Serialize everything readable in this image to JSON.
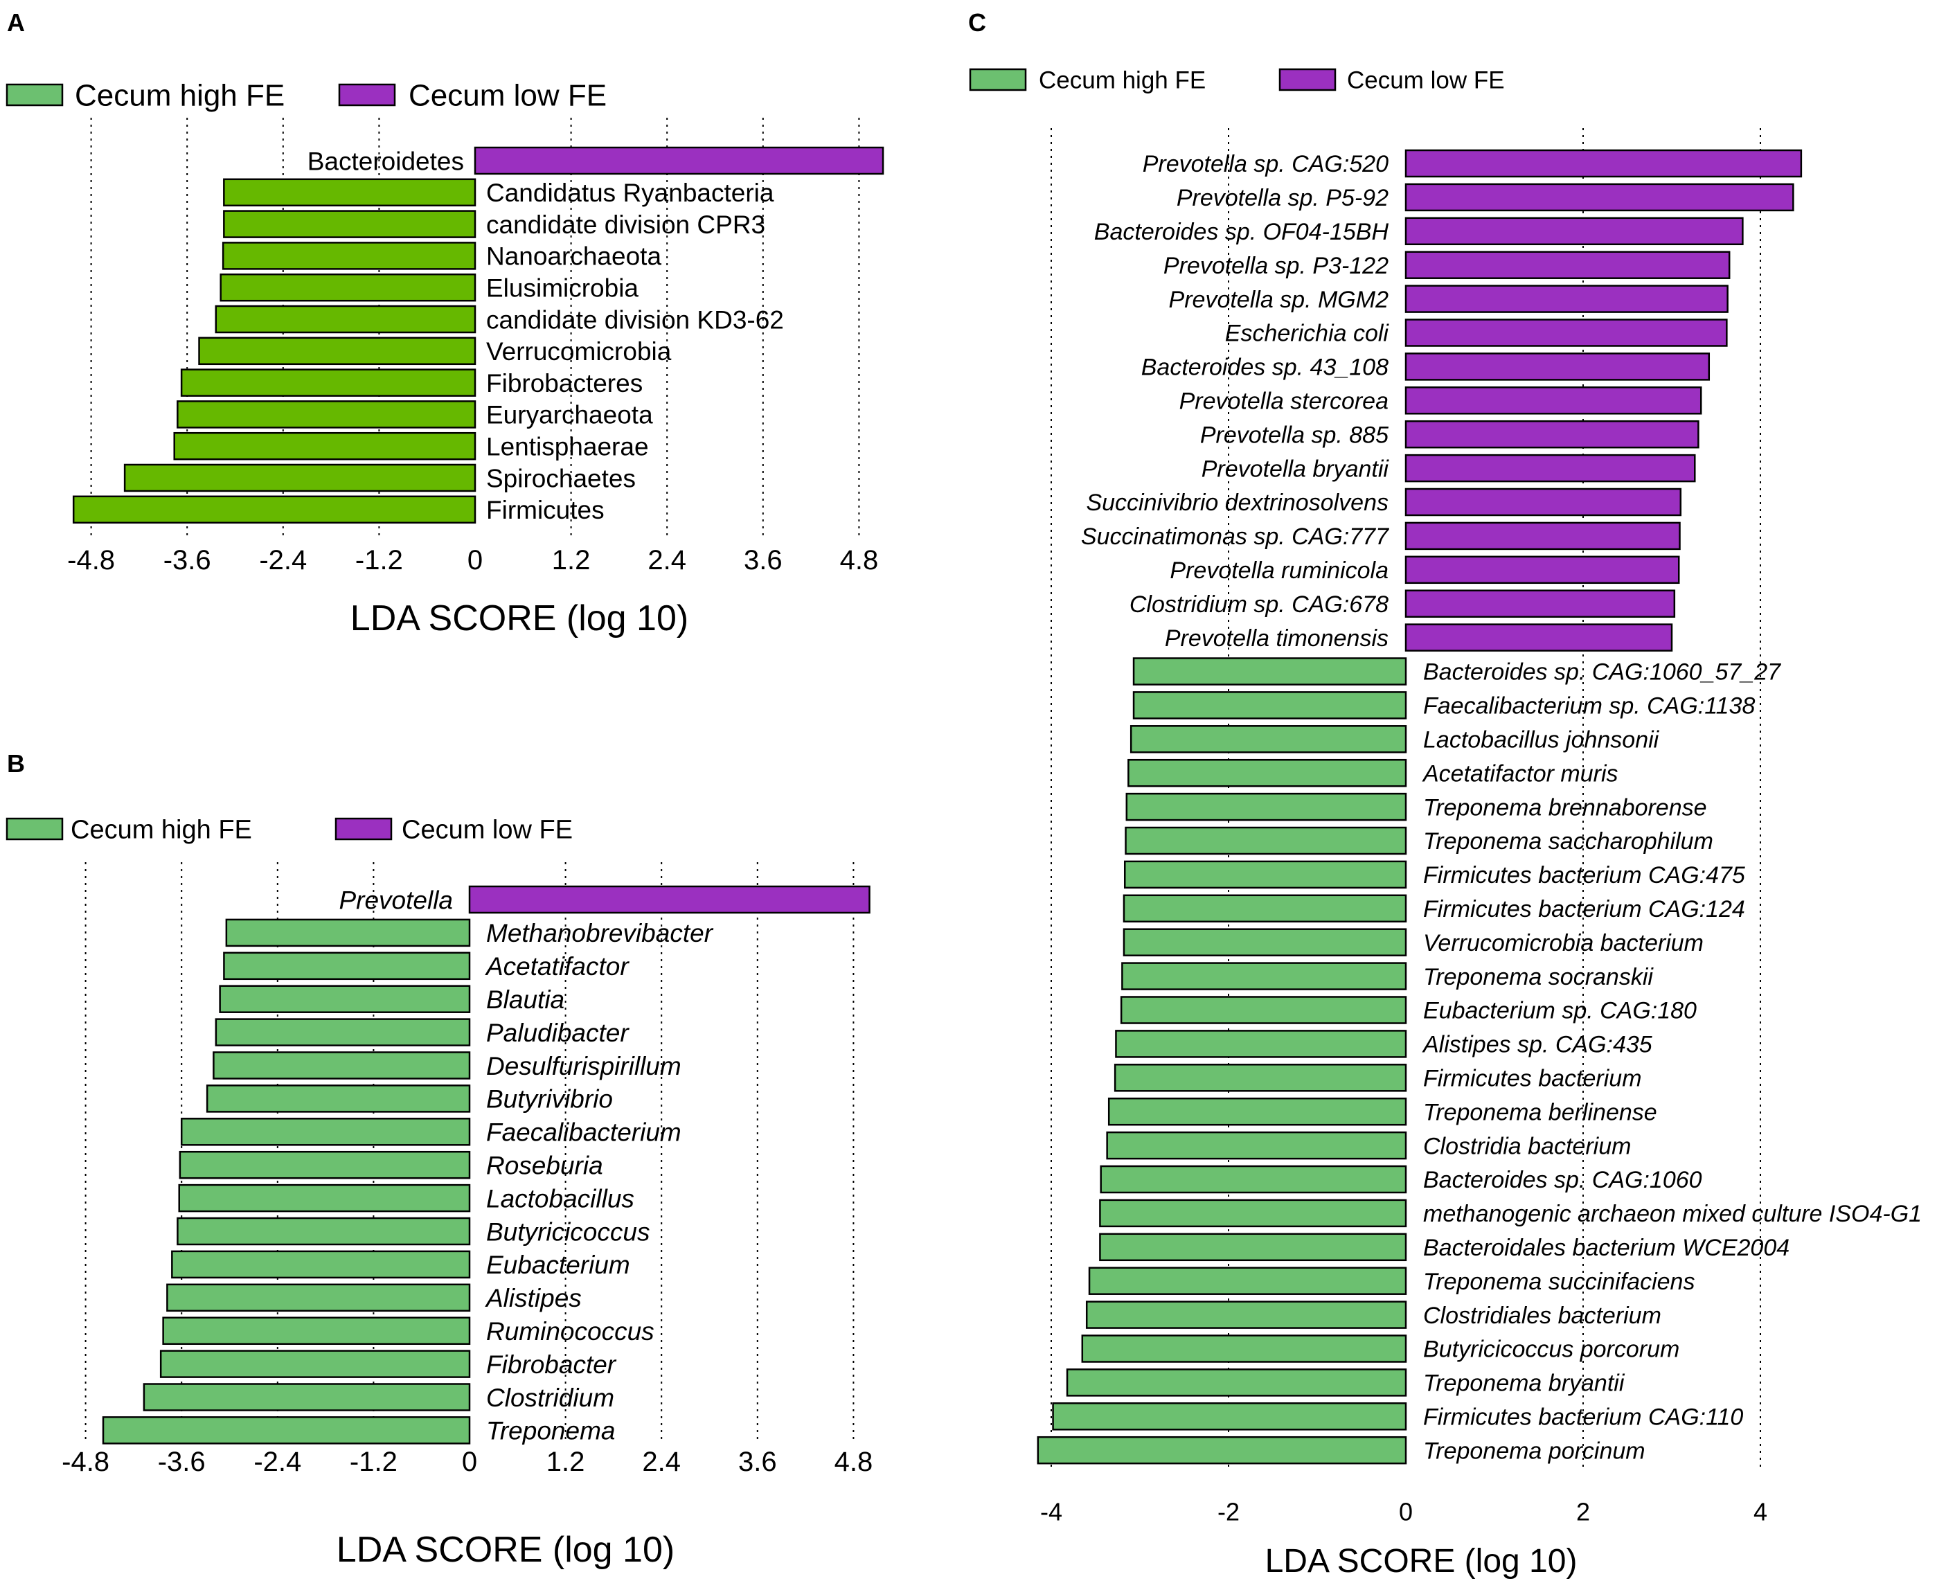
{
  "colors": {
    "high": "#6cc070",
    "high_dark": "#66b800",
    "low": "#9b30c0",
    "axis": "#000000"
  },
  "chart_data": [
    {
      "panel": "A",
      "type": "bar",
      "orientation": "horizontal",
      "legend": [
        {
          "label": "Cecum high FE",
          "color": "#6cc070"
        },
        {
          "label": "Cecum low FE",
          "color": "#9b30c0"
        }
      ],
      "xlabel": "LDA SCORE (log 10)",
      "xlim": [
        -4.8,
        4.8
      ],
      "xticks": [
        -4.8,
        -3.6,
        -2.4,
        -1.2,
        0,
        1.2,
        2.4,
        3.6,
        4.8
      ],
      "xtick_labels": [
        "-4.8",
        "-3.6",
        "-2.4",
        "-1.2",
        "0",
        "1.2",
        "2.4",
        "3.6",
        "4.8"
      ],
      "italic": false,
      "bar_color_high": "#66b800",
      "categories": [
        "Bacteroidetes",
        "Candidatus Ryanbacteria",
        "candidate division CPR3",
        "Nanoarchaeota",
        "Elusimicrobia",
        "candidate division KD3-62",
        "Verrucomicrobia",
        "Fibrobacteres",
        "Euryarchaeota",
        "Lentisphaerae",
        "Spirochaetes",
        "Firmicutes"
      ],
      "values": [
        5.1,
        -3.14,
        -3.14,
        -3.15,
        -3.18,
        -3.24,
        -3.45,
        -3.67,
        -3.72,
        -3.76,
        -4.38,
        -5.02
      ]
    },
    {
      "panel": "B",
      "type": "bar",
      "orientation": "horizontal",
      "legend": [
        {
          "label": "Cecum high FE",
          "color": "#6cc070"
        },
        {
          "label": "Cecum low FE",
          "color": "#9b30c0"
        }
      ],
      "xlabel": "LDA SCORE (log 10)",
      "xlim": [
        -4.8,
        4.8
      ],
      "xticks": [
        -4.8,
        -3.6,
        -2.4,
        -1.2,
        0,
        1.2,
        2.4,
        3.6,
        4.8
      ],
      "xtick_labels": [
        "-4.8",
        "-3.6",
        "-2.4",
        "-1.2",
        "0",
        "1.2",
        "2.4",
        "3.6",
        "4.8"
      ],
      "italic": true,
      "bar_color_high": "#6cc070",
      "categories": [
        "Prevotella",
        "Methanobrevibacter",
        "Acetatifactor",
        "Blautia",
        "Paludibacter",
        "Desulfurispirillum",
        "Butyrivibrio",
        "Faecalibacterium",
        "Roseburia",
        "Lactobacillus",
        "Butyricicoccus",
        "Eubacterium",
        "Alistipes",
        "Ruminococcus",
        "Fibrobacter",
        "Clostridium",
        "Treponema"
      ],
      "values": [
        5.0,
        -3.04,
        -3.07,
        -3.12,
        -3.17,
        -3.2,
        -3.28,
        -3.6,
        -3.62,
        -3.63,
        -3.65,
        -3.72,
        -3.78,
        -3.83,
        -3.86,
        -4.07,
        -4.58
      ]
    },
    {
      "panel": "C",
      "type": "bar",
      "orientation": "horizontal",
      "legend": [
        {
          "label": "Cecum high FE",
          "color": "#6cc070"
        },
        {
          "label": "Cecum low FE",
          "color": "#9b30c0"
        }
      ],
      "xlabel": "LDA SCORE (log 10)",
      "xlim": [
        -4.5,
        4.5
      ],
      "xticks": [
        -4,
        -2,
        0,
        2,
        4
      ],
      "xtick_labels": [
        "-4",
        "-2",
        "0",
        "2",
        "4"
      ],
      "italic": true,
      "bar_color_high": "#6cc070",
      "categories": [
        "Prevotella sp. CAG:520",
        "Prevotella sp. P5-92",
        "Bacteroides sp. OF04-15BH",
        "Prevotella sp. P3-122",
        "Prevotella sp. MGM2",
        "Escherichia coli",
        "Bacteroides sp. 43_108",
        "Prevotella stercorea",
        "Prevotella sp. 885",
        "Prevotella bryantii",
        "Succinivibrio dextrinosolvens",
        "Succinatimonas sp. CAG:777",
        "Prevotella ruminicola",
        "Clostridium sp. CAG:678",
        "Prevotella timonensis",
        "Bacteroides sp. CAG:1060_57_27",
        "Faecalibacterium sp. CAG:1138",
        "Lactobacillus johnsonii",
        "Acetatifactor muris",
        "Treponema brennaborense",
        "Treponema saccharophilum",
        "Firmicutes bacterium CAG:475",
        "Firmicutes bacterium CAG:124",
        "Verrucomicrobia bacterium",
        "Treponema socranskii",
        "Eubacterium sp. CAG:180",
        "Alistipes sp. CAG:435",
        "Firmicutes bacterium",
        "Treponema berlinense",
        "Clostridia bacterium",
        "Bacteroides sp. CAG:1060",
        "methanogenic archaeon mixed culture ISO4-G1",
        "Bacteroidales bacterium WCE2004",
        "Treponema succinifaciens",
        "Clostridiales bacterium",
        "Butyricicoccus porcorum",
        "Treponema bryantii",
        "Firmicutes bacterium CAG:110",
        "Treponema porcinum"
      ],
      "values": [
        4.46,
        4.37,
        3.8,
        3.65,
        3.63,
        3.62,
        3.42,
        3.33,
        3.3,
        3.26,
        3.1,
        3.09,
        3.08,
        3.03,
        3.0,
        -3.07,
        -3.07,
        -3.1,
        -3.13,
        -3.15,
        -3.16,
        -3.17,
        -3.18,
        -3.18,
        -3.2,
        -3.21,
        -3.27,
        -3.28,
        -3.35,
        -3.37,
        -3.44,
        -3.45,
        -3.45,
        -3.57,
        -3.6,
        -3.65,
        -3.82,
        -3.98,
        -4.15
      ]
    }
  ]
}
